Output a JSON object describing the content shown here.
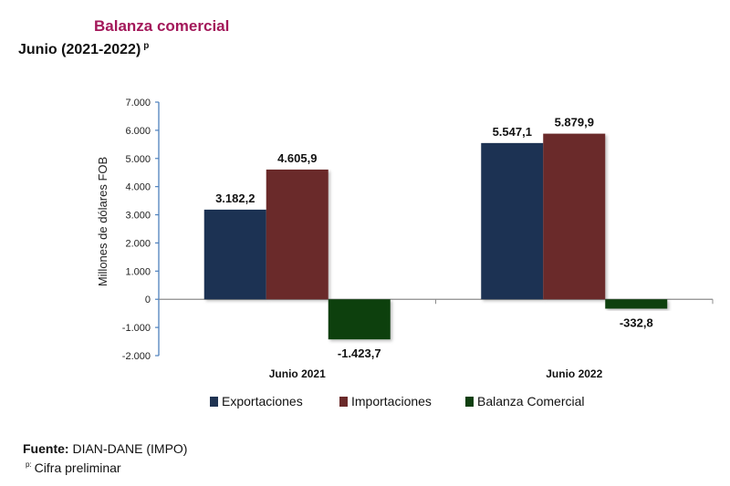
{
  "header": {
    "title": "Balanza comercial",
    "subtitle": "Junio  (2021-2022)",
    "subtitle_mark": "p"
  },
  "footer": {
    "source_label": "Fuente:",
    "source_value": " DIAN-DANE (IMPO)",
    "note_mark": "p:",
    "note_text": "Cifra preliminar"
  },
  "chart_data": {
    "type": "bar",
    "title": "Balanza comercial",
    "subtitle": "Junio (2021-2022) p",
    "xlabel": "",
    "ylabel": "Millones de dólares FOB",
    "ylim": [
      -2000,
      7000
    ],
    "yticks": [
      7000,
      6000,
      5000,
      4000,
      3000,
      2000,
      1000,
      0,
      -1000,
      -2000
    ],
    "ytick_labels": [
      "7.000",
      "6.000",
      "5.000",
      "4.000",
      "3.000",
      "2.000",
      "1.000",
      "0",
      "-1.000",
      "-2.000"
    ],
    "categories": [
      "Junio 2021",
      "Junio 2022"
    ],
    "series": [
      {
        "name": "Exportaciones",
        "values": [
          3182.2,
          5547.1
        ],
        "labels": [
          "3.182,2",
          "5.547,1"
        ],
        "color": "#1F3352"
      },
      {
        "name": "Importaciones",
        "values": [
          4605.9,
          5879.9
        ],
        "labels": [
          "4.605,9",
          "5.879,9"
        ],
        "color": "#6B2A2A"
      },
      {
        "name": "Balanza Comercial",
        "values": [
          -1423.7,
          -332.8
        ],
        "labels": [
          "-1.423,7",
          "-332,8"
        ],
        "color": "#0F3F10"
      }
    ],
    "grid": false,
    "legend": "bottom"
  }
}
